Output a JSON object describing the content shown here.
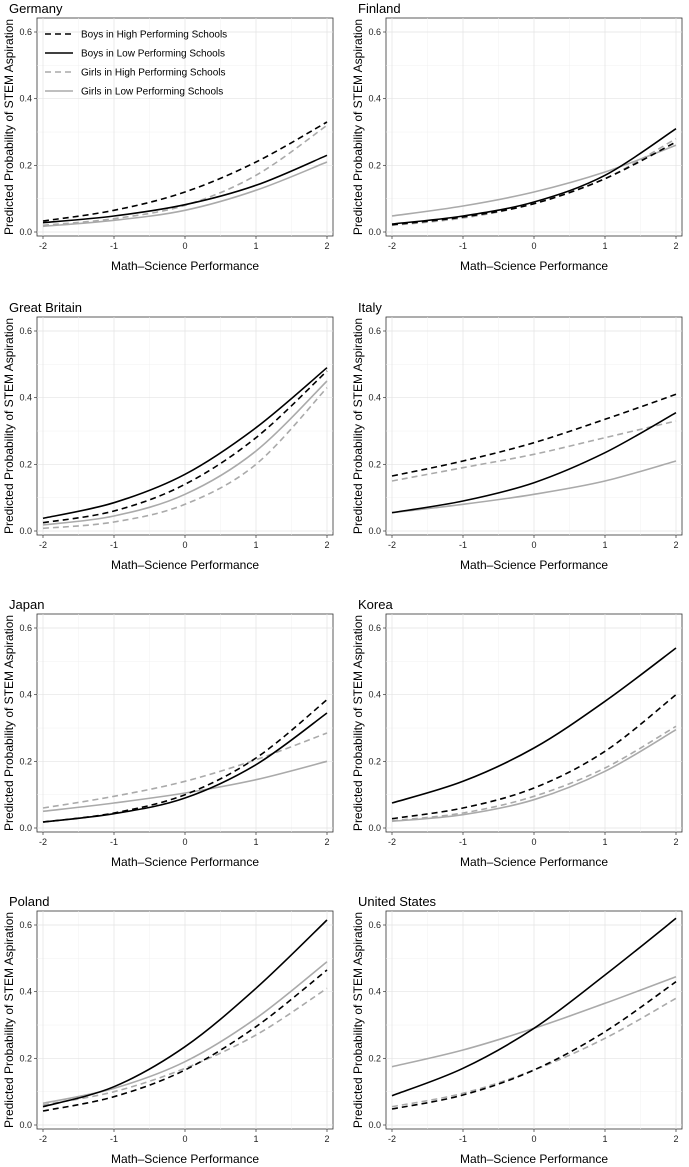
{
  "figure": {
    "xlabel": "Math–Science Performance",
    "ylabel": "Predicted Probability of STEM Aspiration"
  },
  "series_styles": [
    {
      "name": "Boys in High Performing Schools",
      "color": "#000000",
      "dash": "dashed"
    },
    {
      "name": "Boys in Low Performing Schools",
      "color": "#000000",
      "dash": "solid"
    },
    {
      "name": "Girls in High Performing Schools",
      "color": "#aaaaaa",
      "dash": "dashed"
    },
    {
      "name": "Girls in Low Performing Schools",
      "color": "#aaaaaa",
      "dash": "solid"
    }
  ],
  "chart_data": [
    {
      "type": "line",
      "title": "Germany",
      "xlabel": "Math–Science Performance",
      "ylabel": "Predicted Probability of STEM Aspiration",
      "xlim": [
        -2,
        2
      ],
      "ylim": [
        0,
        0.6
      ],
      "xticks": [
        -2,
        -1,
        0,
        1,
        2
      ],
      "yticks": [
        0.0,
        0.2,
        0.4,
        0.6
      ],
      "xtick_labels": [
        "-2",
        "-1",
        "0",
        "1",
        "2"
      ],
      "ytick_labels": [
        "0.0",
        "0.2",
        "0.4",
        "0.6"
      ],
      "legend": {
        "position": "top-left",
        "entries": [
          "Boys in High Performing Schools",
          "Boys in Low Performing Schools",
          "Girls in High Performing Schools",
          "Girls in Low Performing Schools"
        ]
      },
      "x": [
        -2,
        -1,
        0,
        1,
        2
      ],
      "series": [
        {
          "name": "Boys in High Performing Schools",
          "values": [
            0.033,
            0.065,
            0.12,
            0.21,
            0.33
          ]
        },
        {
          "name": "Boys in Low Performing Schools",
          "values": [
            0.028,
            0.048,
            0.082,
            0.14,
            0.23
          ]
        },
        {
          "name": "Girls in High Performing Schools",
          "values": [
            0.02,
            0.04,
            0.08,
            0.17,
            0.32
          ]
        },
        {
          "name": "Girls in Low Performing Schools",
          "values": [
            0.017,
            0.035,
            0.065,
            0.125,
            0.21
          ]
        }
      ]
    },
    {
      "type": "line",
      "title": "Finland",
      "xlabel": "Math–Science Performance",
      "ylabel": "Predicted Probability of STEM Aspiration",
      "xlim": [
        -2,
        2
      ],
      "ylim": [
        0,
        0.6
      ],
      "xticks": [
        -2,
        -1,
        0,
        1,
        2
      ],
      "yticks": [
        0.0,
        0.2,
        0.4,
        0.6
      ],
      "xtick_labels": [
        "-2",
        "-1",
        "0",
        "1",
        "2"
      ],
      "ytick_labels": [
        "0.0",
        "0.2",
        "0.4",
        "0.6"
      ],
      "x": [
        -2,
        -1,
        0,
        1,
        2
      ],
      "series": [
        {
          "name": "Boys in High Performing Schools",
          "values": [
            0.022,
            0.045,
            0.085,
            0.16,
            0.27
          ]
        },
        {
          "name": "Boys in Low Performing Schools",
          "values": [
            0.024,
            0.048,
            0.09,
            0.17,
            0.31
          ]
        },
        {
          "name": "Girls in High Performing Schools",
          "values": [
            0.02,
            0.042,
            0.085,
            0.16,
            0.28
          ]
        },
        {
          "name": "Girls in Low Performing Schools",
          "values": [
            0.048,
            0.078,
            0.12,
            0.18,
            0.26
          ]
        }
      ]
    },
    {
      "type": "line",
      "title": "Great Britain",
      "xlabel": "Math–Science Performance",
      "ylabel": "Predicted Probability of STEM Aspiration",
      "xlim": [
        -2,
        2
      ],
      "ylim": [
        0,
        0.6
      ],
      "xticks": [
        -2,
        -1,
        0,
        1,
        2
      ],
      "yticks": [
        0.0,
        0.2,
        0.4,
        0.6
      ],
      "xtick_labels": [
        "-2",
        "-1",
        "0",
        "1",
        "2"
      ],
      "ytick_labels": [
        "0.0",
        "0.2",
        "0.4",
        "0.6"
      ],
      "x": [
        -2,
        -1,
        0,
        1,
        2
      ],
      "series": [
        {
          "name": "Boys in High Performing Schools",
          "values": [
            0.025,
            0.06,
            0.14,
            0.28,
            0.48
          ]
        },
        {
          "name": "Boys in Low Performing Schools",
          "values": [
            0.038,
            0.085,
            0.17,
            0.31,
            0.49
          ]
        },
        {
          "name": "Girls in High Performing Schools",
          "values": [
            0.008,
            0.027,
            0.08,
            0.2,
            0.43
          ]
        },
        {
          "name": "Girls in Low Performing Schools",
          "values": [
            0.018,
            0.045,
            0.11,
            0.24,
            0.45
          ]
        }
      ]
    },
    {
      "type": "line",
      "title": "Italy",
      "xlabel": "Math–Science Performance",
      "ylabel": "Predicted Probability of STEM Aspiration",
      "xlim": [
        -2,
        2
      ],
      "ylim": [
        0,
        0.6
      ],
      "xticks": [
        -2,
        -1,
        0,
        1,
        2
      ],
      "yticks": [
        0.0,
        0.2,
        0.4,
        0.6
      ],
      "xtick_labels": [
        "-2",
        "-1",
        "0",
        "1",
        "2"
      ],
      "ytick_labels": [
        "0.0",
        "0.2",
        "0.4",
        "0.6"
      ],
      "x": [
        -2,
        -1,
        0,
        1,
        2
      ],
      "series": [
        {
          "name": "Boys in High Performing Schools",
          "values": [
            0.165,
            0.21,
            0.265,
            0.335,
            0.41
          ]
        },
        {
          "name": "Boys in Low Performing Schools",
          "values": [
            0.055,
            0.09,
            0.145,
            0.235,
            0.355
          ]
        },
        {
          "name": "Girls in High Performing Schools",
          "values": [
            0.15,
            0.19,
            0.23,
            0.28,
            0.33
          ]
        },
        {
          "name": "Girls in Low Performing Schools",
          "values": [
            0.055,
            0.08,
            0.11,
            0.15,
            0.21
          ]
        }
      ]
    },
    {
      "type": "line",
      "title": "Japan",
      "xlabel": "Math–Science Performance",
      "ylabel": "Predicted Probability of STEM Aspiration",
      "xlim": [
        -2,
        2
      ],
      "ylim": [
        0,
        0.6
      ],
      "xticks": [
        -2,
        -1,
        0,
        1,
        2
      ],
      "yticks": [
        0.0,
        0.2,
        0.4,
        0.6
      ],
      "xtick_labels": [
        "-2",
        "-1",
        "0",
        "1",
        "2"
      ],
      "ytick_labels": [
        "0.0",
        "0.2",
        "0.4",
        "0.6"
      ],
      "x": [
        -2,
        -1,
        0,
        1,
        2
      ],
      "series": [
        {
          "name": "Boys in High Performing Schools",
          "values": [
            0.018,
            0.045,
            0.1,
            0.21,
            0.385
          ]
        },
        {
          "name": "Boys in Low Performing Schools",
          "values": [
            0.018,
            0.043,
            0.09,
            0.19,
            0.345
          ]
        },
        {
          "name": "Girls in High Performing Schools",
          "values": [
            0.06,
            0.095,
            0.14,
            0.205,
            0.285
          ]
        },
        {
          "name": "Girls in Low Performing Schools",
          "values": [
            0.05,
            0.075,
            0.105,
            0.145,
            0.2
          ]
        }
      ]
    },
    {
      "type": "line",
      "title": "Korea",
      "xlabel": "Math–Science Performance",
      "ylabel": "Predicted Probability of STEM Aspiration",
      "xlim": [
        -2,
        2
      ],
      "ylim": [
        0,
        0.6
      ],
      "xticks": [
        -2,
        -1,
        0,
        1,
        2
      ],
      "yticks": [
        0.0,
        0.2,
        0.4,
        0.6
      ],
      "xtick_labels": [
        "-2",
        "-1",
        "0",
        "1",
        "2"
      ],
      "ytick_labels": [
        "0.0",
        "0.2",
        "0.4",
        "0.6"
      ],
      "x": [
        -2,
        -1,
        0,
        1,
        2
      ],
      "series": [
        {
          "name": "Boys in High Performing Schools",
          "values": [
            0.028,
            0.06,
            0.12,
            0.23,
            0.4
          ]
        },
        {
          "name": "Boys in Low Performing Schools",
          "values": [
            0.075,
            0.14,
            0.24,
            0.38,
            0.54
          ]
        },
        {
          "name": "Girls in High Performing Schools",
          "values": [
            0.022,
            0.045,
            0.095,
            0.18,
            0.305
          ]
        },
        {
          "name": "Girls in Low Performing Schools",
          "values": [
            0.02,
            0.04,
            0.085,
            0.17,
            0.295
          ]
        }
      ]
    },
    {
      "type": "line",
      "title": "Poland",
      "xlabel": "Math–Science Performance",
      "ylabel": "Predicted Probability of STEM Aspiration",
      "xlim": [
        -2,
        2
      ],
      "ylim": [
        0,
        0.6
      ],
      "xticks": [
        -2,
        -1,
        0,
        1,
        2
      ],
      "yticks": [
        0.0,
        0.2,
        0.4,
        0.6
      ],
      "xtick_labels": [
        "-2",
        "-1",
        "0",
        "1",
        "2"
      ],
      "ytick_labels": [
        "0.0",
        "0.2",
        "0.4",
        "0.6"
      ],
      "x": [
        -2,
        -1,
        0,
        1,
        2
      ],
      "series": [
        {
          "name": "Boys in High Performing Schools",
          "values": [
            0.042,
            0.085,
            0.165,
            0.295,
            0.465
          ]
        },
        {
          "name": "Boys in Low Performing Schools",
          "values": [
            0.055,
            0.115,
            0.235,
            0.41,
            0.615
          ]
        },
        {
          "name": "Girls in High Performing Schools",
          "values": [
            0.06,
            0.1,
            0.17,
            0.27,
            0.41
          ]
        },
        {
          "name": "Girls in Low Performing Schools",
          "values": [
            0.065,
            0.11,
            0.19,
            0.32,
            0.49
          ]
        }
      ]
    },
    {
      "type": "line",
      "title": "United States",
      "xlabel": "Math–Science Performance",
      "ylabel": "Predicted Probability of STEM Aspiration",
      "xlim": [
        -2,
        2
      ],
      "ylim": [
        0,
        0.6
      ],
      "xticks": [
        -2,
        -1,
        0,
        1,
        2
      ],
      "yticks": [
        0.0,
        0.2,
        0.4,
        0.6
      ],
      "xtick_labels": [
        "-2",
        "-1",
        "0",
        "1",
        "2"
      ],
      "ytick_labels": [
        "0.0",
        "0.2",
        "0.4",
        "0.6"
      ],
      "x": [
        -2,
        -1,
        0,
        1,
        2
      ],
      "series": [
        {
          "name": "Boys in High Performing Schools",
          "values": [
            0.048,
            0.09,
            0.165,
            0.28,
            0.43
          ]
        },
        {
          "name": "Boys in Low Performing Schools",
          "values": [
            0.088,
            0.17,
            0.29,
            0.45,
            0.62
          ]
        },
        {
          "name": "Girls in High Performing Schools",
          "values": [
            0.055,
            0.095,
            0.165,
            0.26,
            0.38
          ]
        },
        {
          "name": "Girls in Low Performing Schools",
          "values": [
            0.175,
            0.225,
            0.29,
            0.365,
            0.445
          ]
        }
      ]
    }
  ]
}
